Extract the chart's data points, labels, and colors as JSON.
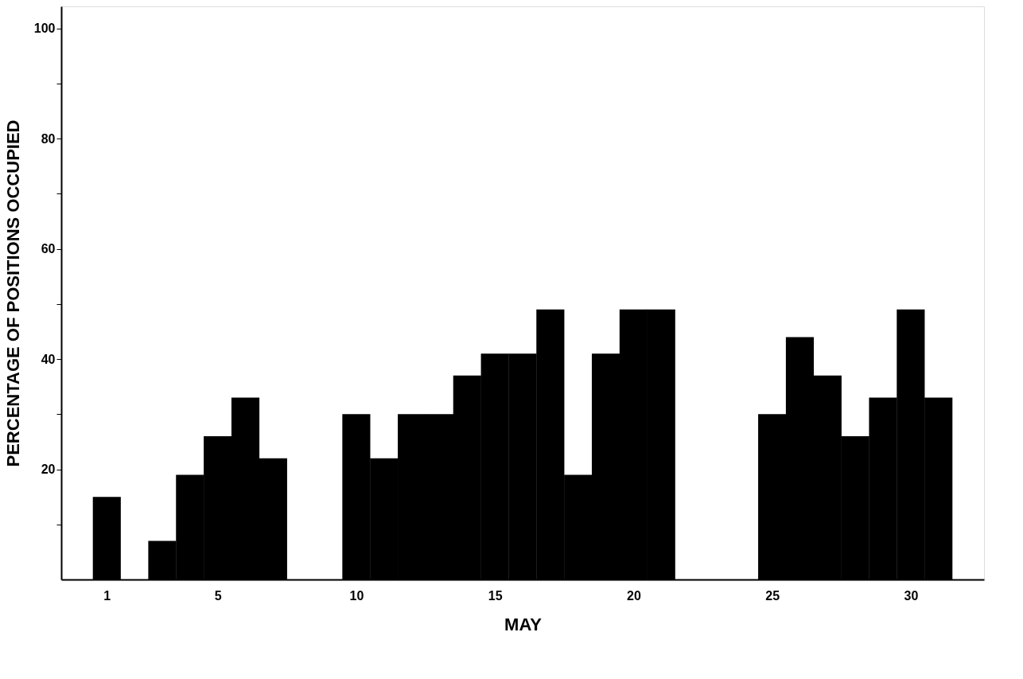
{
  "chart_data": {
    "type": "bar",
    "xlabel": "MAY",
    "ylabel": "PERCENTAGE OF POSITIONS OCCUPIED",
    "x": [
      1,
      2,
      3,
      4,
      5,
      6,
      7,
      8,
      9,
      10,
      11,
      12,
      13,
      14,
      15,
      16,
      17,
      18,
      19,
      20,
      21,
      22,
      23,
      24,
      25,
      26,
      27,
      28,
      29,
      30,
      31
    ],
    "values": [
      15,
      0,
      7,
      19,
      26,
      33,
      22,
      0,
      0,
      30,
      22,
      30,
      30,
      37,
      41,
      41,
      49,
      19,
      41,
      49,
      49,
      0,
      0,
      0,
      30,
      44,
      37,
      26,
      33,
      49,
      33
    ],
    "color": "#000000",
    "xlim": [
      -0.5,
      32.5
    ],
    "xticks": [
      1,
      5,
      10,
      15,
      20,
      25,
      30
    ],
    "ylim": [
      0,
      104
    ],
    "yticks": [
      {
        "value": 10,
        "label": null
      },
      20,
      {
        "value": 30,
        "label": null
      },
      40,
      {
        "value": 50,
        "label": null
      },
      60,
      {
        "value": 70,
        "label": null
      },
      80,
      {
        "value": 90,
        "label": null
      },
      100
    ],
    "grid": false
  }
}
